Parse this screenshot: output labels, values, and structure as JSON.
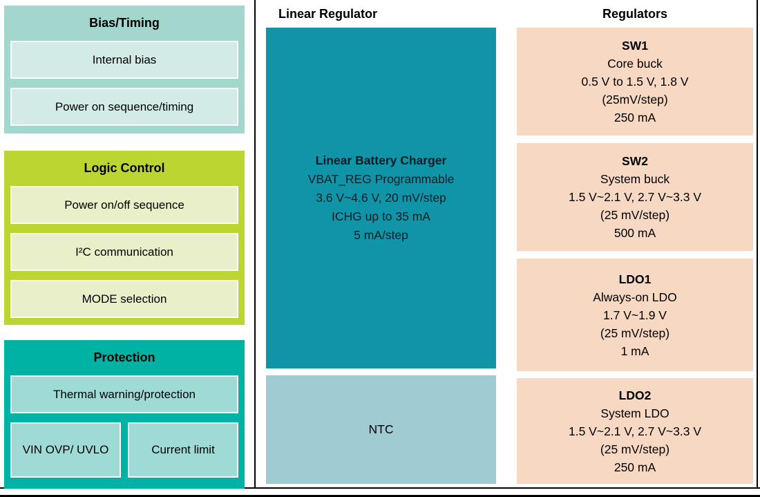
{
  "left_blocks": [
    {
      "title": "Bias/Timing",
      "items": [
        "Internal bias",
        "Power on sequence/timing"
      ]
    },
    {
      "title": "Logic Control",
      "items": [
        "Power on/off sequence",
        "I²C communication",
        "MODE selection"
      ]
    },
    {
      "title": "Protection",
      "items": [
        "Thermal warning/protection"
      ],
      "split_items": [
        "VIN OVP/ UVLO",
        "Current limit"
      ]
    }
  ],
  "linear_regulator": {
    "section_title": "Linear Regulator",
    "charger_lines": [
      "Linear Battery Charger",
      "VBAT_REG Programmable",
      "3.6 V~4.6 V, 20 mV/step",
      "ICHG up to 35 mA",
      "5 mA/step"
    ],
    "ntc_label": "NTC"
  },
  "regulators": {
    "section_title": "Regulators",
    "blocks": [
      {
        "name": "SW1",
        "lines": [
          "Core buck",
          "0.5 V to 1.5 V, 1.8 V",
          "(25mV/step)",
          "250 mA"
        ]
      },
      {
        "name": "SW2",
        "lines": [
          "System buck",
          "1.5 V~2.1 V, 2.7 V~3.3 V",
          "(25 mV/step)",
          "500 mA"
        ]
      },
      {
        "name": "LDO1",
        "lines": [
          "Always-on LDO",
          "1.7 V~1.9 V",
          "(25 mV/step)",
          "1 mA"
        ]
      },
      {
        "name": "LDO2",
        "lines": [
          "System LDO",
          "1.5 V~2.1 V, 2.7 V~3.3 V",
          "(25 mV/step)",
          "250 mA"
        ]
      }
    ]
  },
  "colors": {
    "bias_block": "#a3d6cd",
    "bias_cell": "#d3ebe6",
    "logic_block": "#bcd531",
    "logic_cell": "#e9efc8",
    "protection_block": "#00b2a3",
    "protection_cell": "#9fdad6",
    "charger_block": "#1095a8",
    "ntc_block": "#9fcbd3",
    "regulator_block": "#f7d9c3",
    "border": "#000000"
  }
}
